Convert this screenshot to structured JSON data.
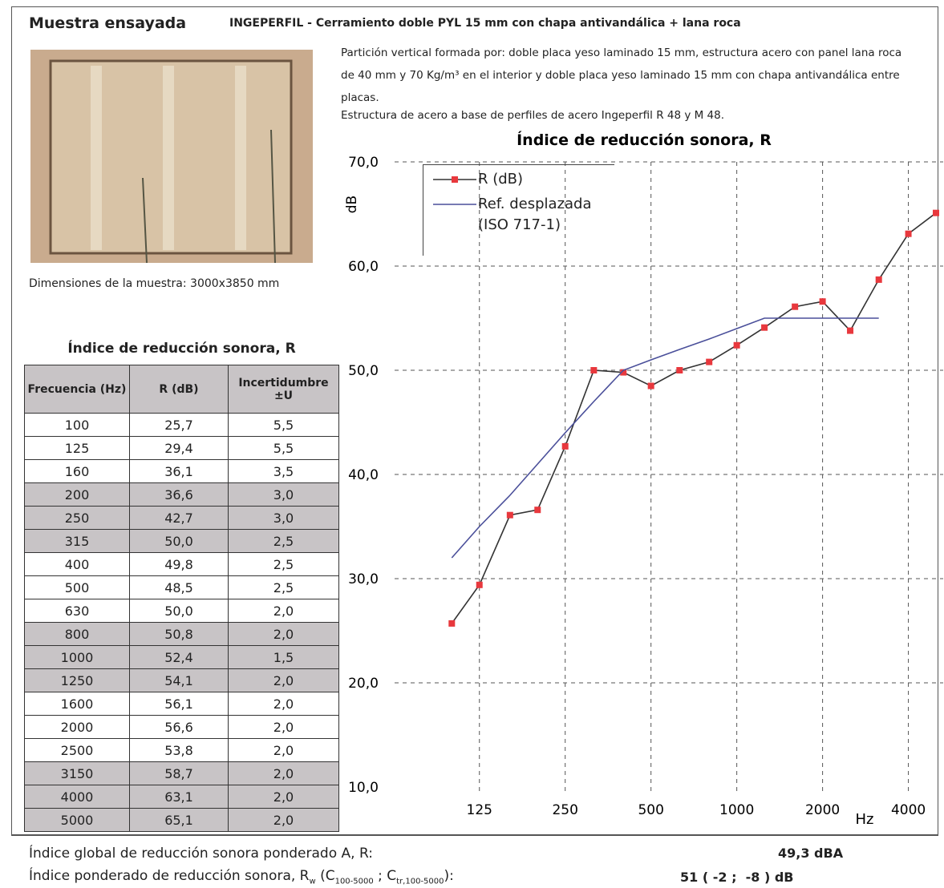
{
  "header": {
    "label": "Muestra ensayada",
    "product": "INGEPERFIL - Cerramiento doble PYL 15 mm con chapa antivandálica + lana roca"
  },
  "description": [
    "Partición vertical formada por: doble placa yeso laminado 15 mm, estructura acero con panel lana roca de 40 mm y 70 Kg/m³ en el interior y doble placa yeso laminado 15 mm con chapa antivandálica entre placas.",
    "Estructura de acero a base de perfiles de acero Ingeperfil R 48 y M 48."
  ],
  "photo_caption": "Dimensiones de la muestra: 3000x3850 mm",
  "table": {
    "title": "Índice de reducción sonora, R",
    "header": [
      "Frecuencia (Hz)",
      "R (dB)",
      "Incertidumbre ±U"
    ],
    "rows": [
      [
        "100",
        "25,7",
        "5,5"
      ],
      [
        "125",
        "29,4",
        "5,5"
      ],
      [
        "160",
        "36,1",
        "3,5"
      ],
      [
        "200",
        "36,6",
        "3,0"
      ],
      [
        "250",
        "42,7",
        "3,0"
      ],
      [
        "315",
        "50,0",
        "2,5"
      ],
      [
        "400",
        "49,8",
        "2,5"
      ],
      [
        "500",
        "48,5",
        "2,5"
      ],
      [
        "630",
        "50,0",
        "2,0"
      ],
      [
        "800",
        "50,8",
        "2,0"
      ],
      [
        "1000",
        "52,4",
        "1,5"
      ],
      [
        "1250",
        "54,1",
        "2,0"
      ],
      [
        "1600",
        "56,1",
        "2,0"
      ],
      [
        "2000",
        "56,6",
        "2,0"
      ],
      [
        "2500",
        "53,8",
        "2,0"
      ],
      [
        "3150",
        "58,7",
        "2,0"
      ],
      [
        "4000",
        "63,1",
        "2,0"
      ],
      [
        "5000",
        "65,1",
        "2,0"
      ]
    ]
  },
  "chart_data": {
    "type": "line",
    "title": "Índice de reducción sonora, R",
    "y_label": "dB",
    "x_label": "Hz",
    "x": [
      100,
      125,
      160,
      200,
      250,
      315,
      400,
      500,
      630,
      800,
      1000,
      1250,
      1600,
      2000,
      2500,
      3150,
      4000,
      5000
    ],
    "series": [
      {
        "name": "R (dB)",
        "color": "#333333",
        "marker_color": "#e8383d",
        "values": [
          25.7,
          29.4,
          36.1,
          36.6,
          42.7,
          50.0,
          49.8,
          48.5,
          50.0,
          50.8,
          52.4,
          54.1,
          56.1,
          56.6,
          53.8,
          58.7,
          63.1,
          65.1
        ]
      },
      {
        "name": "Ref. desplazada (ISO 717-1)",
        "color": "#4a4f9a",
        "values": [
          32,
          35,
          38,
          41,
          44,
          47,
          50,
          51,
          52,
          53,
          54,
          55,
          55,
          55,
          55,
          55,
          null,
          null
        ]
      }
    ],
    "xscale": "log",
    "xlim": [
      63,
      5300
    ],
    "xticks": [
      125,
      250,
      500,
      1000,
      2000,
      4000
    ],
    "ylim": [
      10,
      70
    ],
    "yticks": [
      {
        "value": 10,
        "label": "10,0"
      },
      {
        "value": 20,
        "label": "20,0"
      },
      {
        "value": 30,
        "label": "30,0"
      },
      {
        "value": 40,
        "label": "40,0"
      },
      {
        "value": 50,
        "label": "50,0"
      },
      {
        "value": 60,
        "label": "60,0"
      },
      {
        "value": 70,
        "label": "70,0"
      }
    ],
    "grid": true,
    "legend": "upper left"
  },
  "footer": {
    "global_label": "Índice global de reducción sonora ponderado A, R:",
    "global_value": "49,3 dBA",
    "weighted_parts": [
      "Índice ponderado de reducción sonora, R",
      "w",
      " (C",
      "100-5000",
      " ; C",
      "tr,100-5000",
      "):"
    ],
    "weighted_value": "51 ( -2 ;  -8 ) dB"
  }
}
